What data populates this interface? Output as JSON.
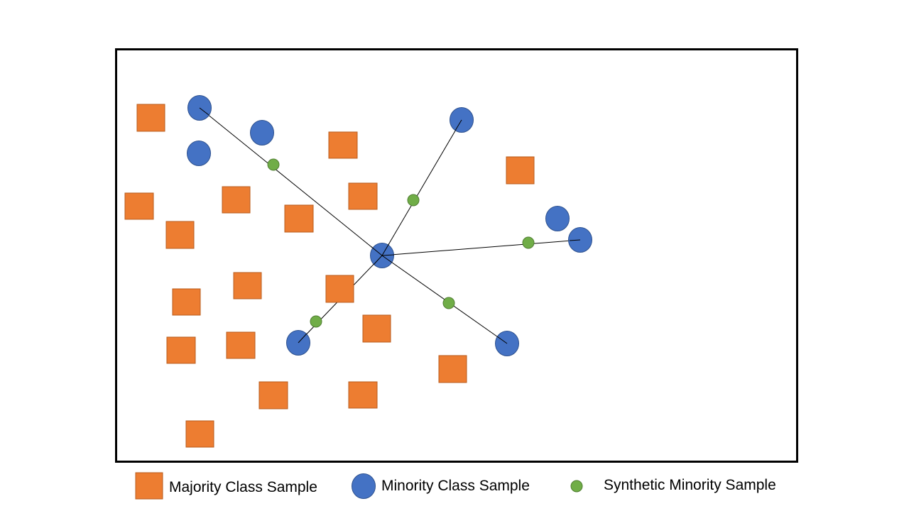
{
  "legend": {
    "majority_label": "Majority Class Sample",
    "minority_label": "Minority Class Sample",
    "synthetic_label": "Synthetic Minority Sample"
  },
  "colors": {
    "majority": "#ED7D31",
    "majority_stroke": "#B85C1E",
    "minority": "#4472C4",
    "minority_stroke": "#2F528F",
    "synthetic": "#70AD47",
    "synthetic_stroke": "#507E32",
    "frame": "#000000",
    "connector": "#000000"
  }
}
